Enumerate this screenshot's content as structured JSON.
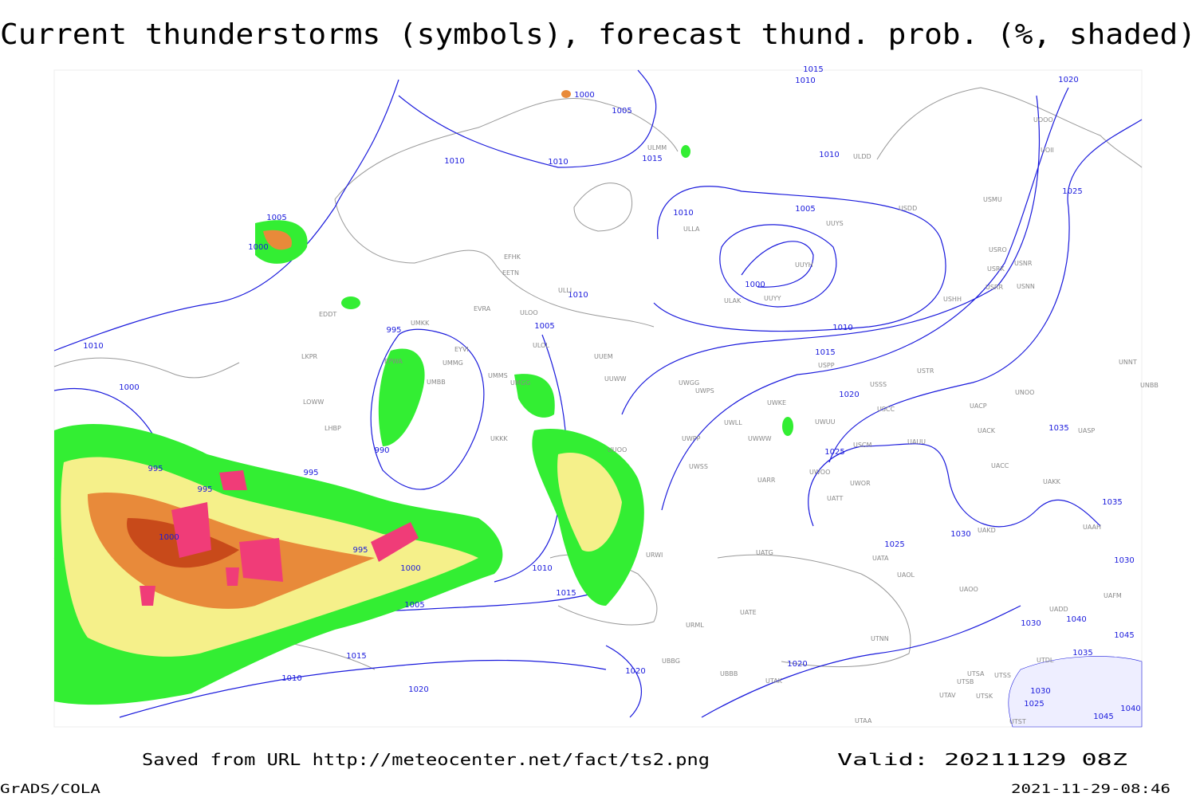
{
  "header": {
    "title": "Current thunderstorms (symbols), forecast thund. prob. (%, shaded)"
  },
  "footer": {
    "source": "Saved from URL http://meteocenter.net/fact/ts2.png",
    "valid": "Valid: 20211129 08Z",
    "software": "GrADS/COLA",
    "timestamp": "2021-11-29-08:46"
  },
  "isobar_labels": [
    1000,
    1005,
    1010,
    1010,
    1015,
    1010,
    1015,
    1020,
    1010,
    1010,
    1005,
    1000,
    1025,
    1010,
    1005,
    1010,
    1015,
    1020,
    1025,
    1035,
    1035,
    1030,
    1030,
    1025,
    1040,
    1045,
    1035,
    1030,
    1030,
    1025,
    1040,
    1045,
    1020,
    1020,
    1010,
    1015,
    1005,
    1000,
    995,
    1000,
    995,
    995,
    995,
    990,
    995,
    1000,
    1010,
    1005,
    1000,
    1015,
    1010,
    1020
  ],
  "station_labels": [
    "ULMM",
    "ULLA",
    "EFHK",
    "EETN",
    "ULLI",
    "EVRA",
    "ULOO",
    "UMKK",
    "EYVI",
    "ULOL",
    "UUEM",
    "EPWA",
    "UMMG",
    "LKPR",
    "UMMS",
    "UMGG",
    "UUWW",
    "UMBB",
    "LOWW",
    "LHBP",
    "UKKK",
    "UUOO",
    "ULDD",
    "UUYS",
    "UUYH",
    "ULAK",
    "UUYY",
    "USDD",
    "USMU",
    "USRO",
    "USRK",
    "USNR",
    "USRR",
    "USNN",
    "USHH",
    "USPP",
    "USTR",
    "UWGG",
    "UWPS",
    "UWKE",
    "USSS",
    "USCC",
    "UWLL",
    "UWWW",
    "UWPP",
    "UWUU",
    "USCM",
    "UAUU",
    "UWSS",
    "UARR",
    "UWOO",
    "UWOR",
    "UATT",
    "UATG",
    "URWI",
    "UATA",
    "UAOL",
    "UAOO",
    "UATE",
    "URML",
    "UTNN",
    "UBBG",
    "UBBB",
    "UTAK",
    "UTSA",
    "UTSS",
    "UTSB",
    "UTAV",
    "UTSK",
    "UTAA",
    "UTST",
    "UACK",
    "UACP",
    "UNOO",
    "UNNT",
    "UNBB",
    "UASP",
    "UACC",
    "UAKK",
    "UAAH",
    "UAKD",
    "UAFM",
    "UADD",
    "UTDL",
    "UOOO",
    "UOII",
    "EDDT"
  ]
}
